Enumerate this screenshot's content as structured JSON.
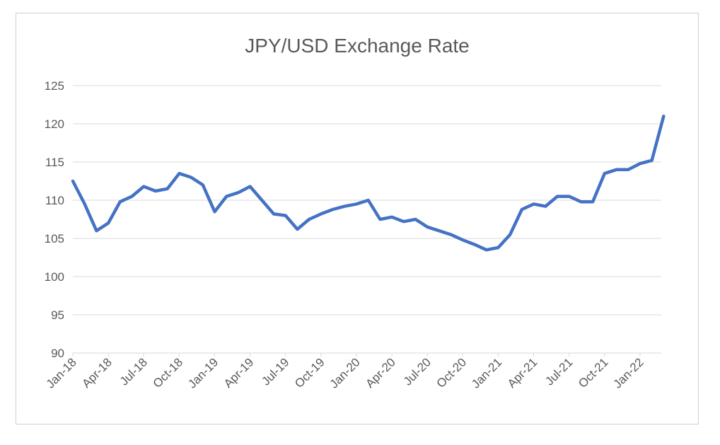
{
  "chart_data": {
    "type": "line",
    "title": "JPY/USD Exchange Rate",
    "xlabel": "",
    "ylabel": "",
    "ylim": [
      90,
      125
    ],
    "yticks": [
      90,
      95,
      100,
      105,
      110,
      115,
      120,
      125
    ],
    "xticks": [
      "Jan-18",
      "Apr-18",
      "Jul-18",
      "Oct-18",
      "Jan-19",
      "Apr-19",
      "Jul-19",
      "Oct-19",
      "Jan-20",
      "Apr-20",
      "Jul-20",
      "Oct-20",
      "Jan-21",
      "Apr-21",
      "Jul-21",
      "Oct-21",
      "Jan-22"
    ],
    "grid": "horizontal",
    "legend": "none",
    "color": "#4472c4",
    "series": [
      {
        "x": [
          "Jan-18",
          "Feb-18",
          "Mar-18",
          "Apr-18",
          "May-18",
          "Jun-18",
          "Jul-18",
          "Aug-18",
          "Sep-18",
          "Oct-18",
          "Nov-18",
          "Dec-18",
          "Jan-19",
          "Feb-19",
          "Mar-19",
          "Apr-19",
          "May-19",
          "Jun-19",
          "Jul-19",
          "Aug-19",
          "Sep-19",
          "Oct-19",
          "Nov-19",
          "Dec-19",
          "Jan-20",
          "Feb-20",
          "Mar-20",
          "Apr-20",
          "May-20",
          "Jun-20",
          "Jul-20",
          "Aug-20",
          "Sep-20",
          "Oct-20",
          "Nov-20",
          "Dec-20",
          "Jan-21",
          "Feb-21",
          "Mar-21",
          "Apr-21",
          "May-21",
          "Jun-21",
          "Jul-21",
          "Aug-21",
          "Sep-21",
          "Oct-21",
          "Nov-21",
          "Dec-21",
          "Jan-22",
          "Feb-22",
          "Mar-22"
        ],
        "values": [
          112.5,
          109.5,
          106.0,
          107.0,
          109.8,
          110.5,
          111.8,
          111.2,
          111.5,
          113.5,
          113.0,
          112.0,
          108.5,
          110.5,
          111.0,
          111.8,
          110.0,
          108.2,
          108.0,
          106.2,
          107.5,
          108.2,
          108.8,
          109.2,
          109.5,
          110.0,
          107.5,
          107.8,
          107.2,
          107.5,
          106.5,
          106.0,
          105.5,
          104.8,
          104.2,
          103.5,
          103.8,
          105.5,
          108.8,
          109.5,
          109.2,
          110.5,
          110.5,
          109.8,
          109.8,
          113.5,
          114.0,
          114.0,
          114.8,
          115.2,
          121.0
        ]
      }
    ]
  }
}
